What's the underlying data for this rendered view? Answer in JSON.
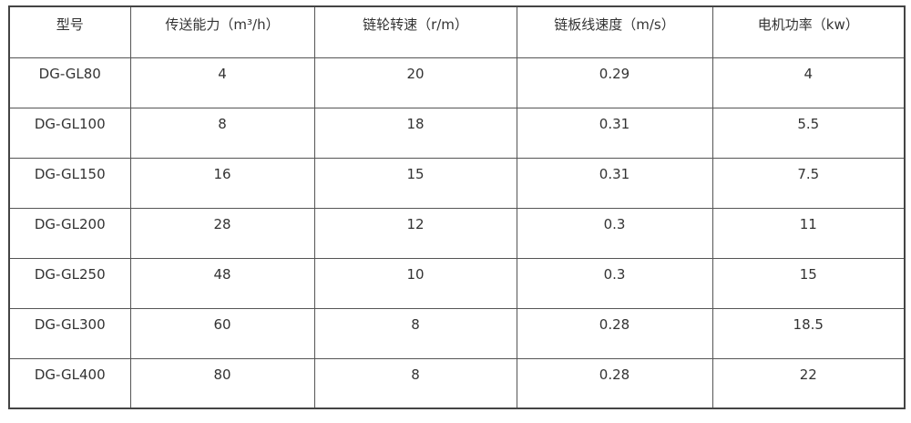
{
  "table": {
    "headers": [
      "型号",
      "传送能力（m³/h）",
      "链轮转速（r/m）",
      "链板线速度（m/s）",
      "电机功率（kw）"
    ],
    "rows": [
      [
        "DG-GL80",
        "4",
        "20",
        "0.29",
        "4"
      ],
      [
        "DG-GL100",
        "8",
        "18",
        "0.31",
        "5.5"
      ],
      [
        "DG-GL150",
        "16",
        "15",
        "0.31",
        "7.5"
      ],
      [
        "DG-GL200",
        "28",
        "12",
        "0.3",
        "11"
      ],
      [
        "DG-GL250",
        "48",
        "10",
        "0.3",
        "15"
      ],
      [
        "DG-GL300",
        "60",
        "8",
        "0.28",
        "18.5"
      ],
      [
        "DG-GL400",
        "80",
        "8",
        "0.28",
        "22"
      ]
    ]
  }
}
